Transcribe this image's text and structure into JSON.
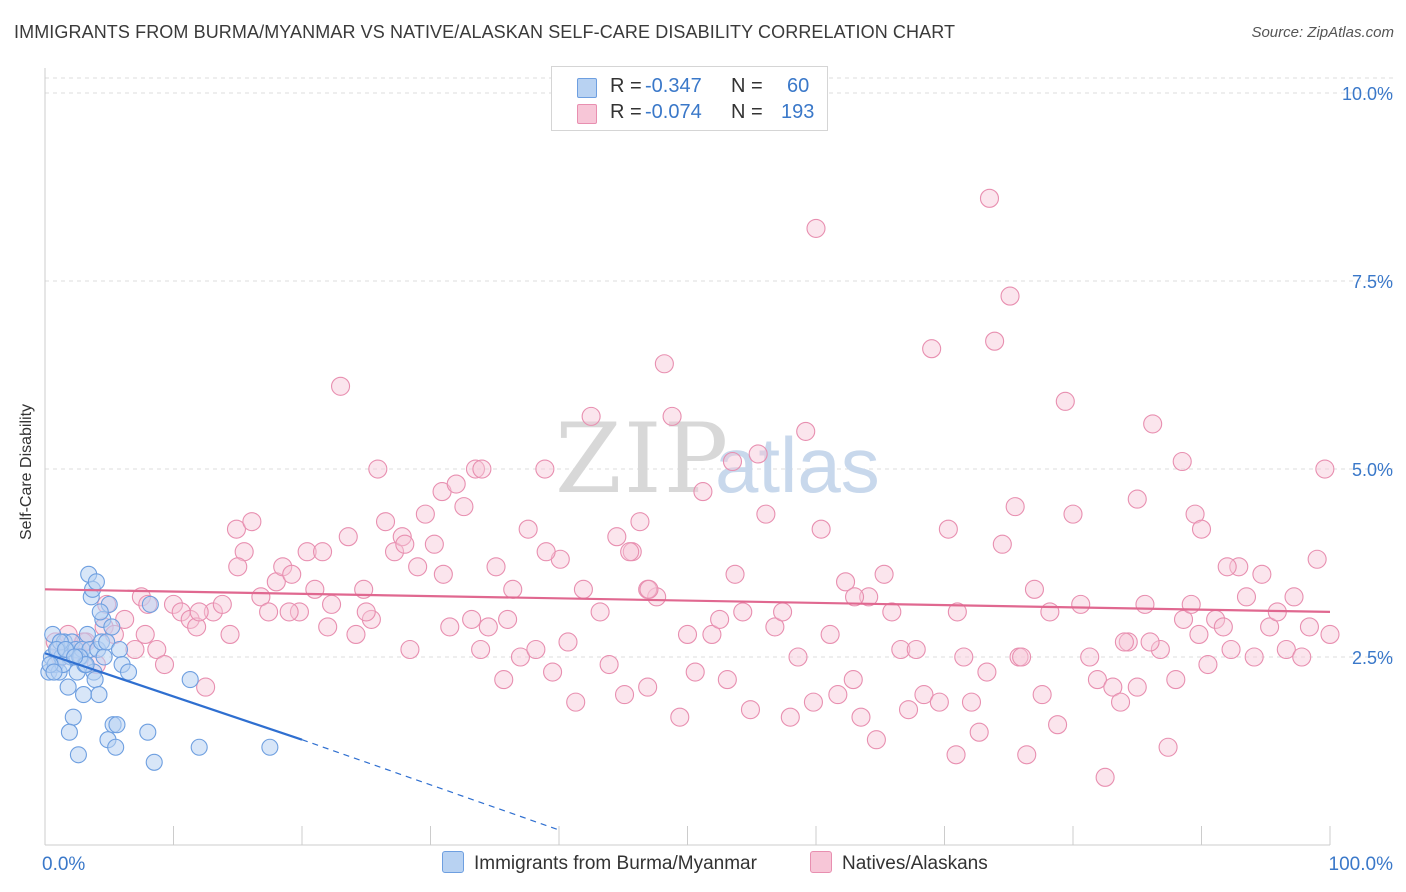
{
  "title": "IMMIGRANTS FROM BURMA/MYANMAR VS NATIVE/ALASKAN SELF-CARE DISABILITY CORRELATION CHART",
  "source": "Source: ZipAtlas.com",
  "watermark": {
    "zip": "ZIP",
    "atlas": "atlas"
  },
  "legend": {
    "r_label": "R =",
    "n_label": "N =",
    "series1": {
      "r": "-0.347",
      "n": "60"
    },
    "series2": {
      "r": "-0.074",
      "n": "193"
    }
  },
  "colors": {
    "blue_fill": "#b8d2f2",
    "blue_stroke": "#6e9fe0",
    "blue_line": "#2f6fd0",
    "pink_fill": "#f7c6d7",
    "pink_stroke": "#e88fb0",
    "pink_line": "#e06890",
    "accent_text": "#3a78c9"
  },
  "chart_data": {
    "type": "scatter",
    "title": "IMMIGRANTS FROM BURMA/MYANMAR VS NATIVE/ALASKAN SELF-CARE DISABILITY CORRELATION CHART",
    "xlabel": "",
    "ylabel": "Self-Care Disability",
    "xlim": [
      0,
      100
    ],
    "ylim": [
      0,
      10.2
    ],
    "x_tick_labels": [
      "0.0%",
      "100.0%"
    ],
    "y_ticks": [
      2.5,
      5.0,
      7.5,
      10.0
    ],
    "y_tick_labels": [
      "2.5%",
      "5.0%",
      "7.5%",
      "10.0%"
    ],
    "grid": true,
    "legend_position": "top-center",
    "series": [
      {
        "name": "Immigrants from Burma/Myanmar",
        "color": "blue",
        "trend": {
          "x0": 0,
          "y0": 2.55,
          "x1": 20,
          "y1": 1.4,
          "dash_to_x": 40,
          "dash_to_y": 0.2
        },
        "points": [
          [
            0.3,
            2.3
          ],
          [
            0.5,
            2.5
          ],
          [
            0.6,
            2.8
          ],
          [
            0.8,
            2.4
          ],
          [
            1.0,
            2.6
          ],
          [
            1.1,
            2.3
          ],
          [
            1.3,
            2.5
          ],
          [
            1.5,
            2.7
          ],
          [
            1.7,
            2.6
          ],
          [
            1.8,
            2.1
          ],
          [
            2.0,
            2.5
          ],
          [
            2.1,
            2.7
          ],
          [
            2.2,
            1.7
          ],
          [
            2.4,
            2.6
          ],
          [
            2.5,
            2.3
          ],
          [
            2.6,
            1.2
          ],
          [
            2.8,
            2.5
          ],
          [
            2.9,
            2.6
          ],
          [
            3.0,
            2.0
          ],
          [
            3.1,
            2.4
          ],
          [
            3.3,
            2.8
          ],
          [
            3.4,
            3.6
          ],
          [
            3.5,
            2.6
          ],
          [
            3.6,
            3.3
          ],
          [
            3.7,
            3.4
          ],
          [
            3.8,
            2.3
          ],
          [
            3.9,
            2.2
          ],
          [
            4.0,
            3.5
          ],
          [
            4.1,
            2.6
          ],
          [
            4.2,
            2.0
          ],
          [
            4.4,
            2.7
          ],
          [
            4.5,
            3.0
          ],
          [
            4.6,
            2.5
          ],
          [
            4.8,
            2.7
          ],
          [
            4.9,
            1.4
          ],
          [
            5.0,
            3.2
          ],
          [
            5.2,
            2.9
          ],
          [
            5.3,
            1.6
          ],
          [
            5.5,
            1.3
          ],
          [
            5.6,
            1.6
          ],
          [
            5.8,
            2.6
          ],
          [
            6.0,
            2.4
          ],
          [
            1.2,
            2.7
          ],
          [
            1.4,
            2.4
          ],
          [
            1.9,
            1.5
          ],
          [
            2.7,
            2.5
          ],
          [
            3.2,
            2.4
          ],
          [
            0.4,
            2.4
          ],
          [
            0.9,
            2.6
          ],
          [
            1.6,
            2.6
          ],
          [
            8.0,
            1.5
          ],
          [
            8.5,
            1.1
          ],
          [
            11.3,
            2.2
          ],
          [
            12.0,
            1.3
          ],
          [
            17.5,
            1.3
          ],
          [
            8.2,
            3.2
          ],
          [
            2.3,
            2.5
          ],
          [
            0.7,
            2.3
          ],
          [
            4.3,
            3.1
          ],
          [
            6.5,
            2.3
          ]
        ]
      },
      {
        "name": "Natives/Alaskans",
        "color": "pink",
        "trend": {
          "x0": 0,
          "y0": 3.4,
          "x1": 100,
          "y1": 3.1
        },
        "points": [
          [
            0.8,
            2.7
          ],
          [
            1.2,
            2.5
          ],
          [
            1.8,
            2.8
          ],
          [
            2.5,
            2.6
          ],
          [
            3.2,
            2.7
          ],
          [
            4.0,
            2.4
          ],
          [
            4.6,
            2.9
          ],
          [
            5.4,
            2.8
          ],
          [
            6.2,
            3.0
          ],
          [
            7.0,
            2.6
          ],
          [
            7.5,
            3.3
          ],
          [
            8.0,
            3.2
          ],
          [
            8.7,
            2.6
          ],
          [
            9.3,
            2.4
          ],
          [
            10.0,
            3.2
          ],
          [
            10.6,
            3.1
          ],
          [
            11.3,
            3.0
          ],
          [
            11.8,
            2.9
          ],
          [
            12.5,
            2.1
          ],
          [
            13.1,
            3.1
          ],
          [
            13.8,
            3.2
          ],
          [
            14.4,
            2.8
          ],
          [
            14.9,
            4.2
          ],
          [
            15.5,
            3.9
          ],
          [
            16.1,
            4.3
          ],
          [
            16.8,
            3.3
          ],
          [
            17.4,
            3.1
          ],
          [
            18.0,
            3.5
          ],
          [
            18.5,
            3.7
          ],
          [
            19.2,
            3.6
          ],
          [
            19.8,
            3.1
          ],
          [
            20.4,
            3.9
          ],
          [
            21.0,
            3.4
          ],
          [
            21.6,
            3.9
          ],
          [
            22.3,
            3.2
          ],
          [
            23.0,
            6.1
          ],
          [
            23.6,
            4.1
          ],
          [
            24.2,
            2.8
          ],
          [
            24.8,
            3.4
          ],
          [
            25.4,
            3.0
          ],
          [
            25.9,
            5.0
          ],
          [
            26.5,
            4.3
          ],
          [
            27.2,
            3.9
          ],
          [
            27.8,
            4.1
          ],
          [
            28.4,
            2.6
          ],
          [
            29.0,
            3.7
          ],
          [
            29.6,
            4.4
          ],
          [
            30.3,
            4.0
          ],
          [
            30.9,
            4.7
          ],
          [
            31.5,
            2.9
          ],
          [
            32.0,
            4.8
          ],
          [
            32.6,
            4.5
          ],
          [
            33.2,
            3.0
          ],
          [
            33.9,
            2.6
          ],
          [
            34.5,
            2.9
          ],
          [
            35.1,
            3.7
          ],
          [
            35.7,
            2.2
          ],
          [
            36.4,
            3.4
          ],
          [
            37.0,
            2.5
          ],
          [
            37.6,
            4.2
          ],
          [
            38.2,
            2.6
          ],
          [
            38.9,
            5.0
          ],
          [
            39.5,
            2.3
          ],
          [
            40.1,
            3.8
          ],
          [
            40.7,
            2.7
          ],
          [
            41.3,
            1.9
          ],
          [
            41.9,
            3.4
          ],
          [
            42.5,
            5.7
          ],
          [
            43.2,
            3.1
          ],
          [
            43.9,
            2.4
          ],
          [
            44.5,
            4.1
          ],
          [
            45.1,
            2.0
          ],
          [
            45.7,
            3.9
          ],
          [
            46.3,
            4.3
          ],
          [
            46.9,
            2.1
          ],
          [
            47.6,
            3.3
          ],
          [
            48.2,
            6.4
          ],
          [
            48.8,
            5.7
          ],
          [
            49.4,
            1.7
          ],
          [
            50.0,
            2.8
          ],
          [
            50.6,
            2.3
          ],
          [
            51.2,
            4.7
          ],
          [
            51.9,
            2.8
          ],
          [
            52.5,
            3.0
          ],
          [
            53.1,
            2.2
          ],
          [
            53.7,
            3.6
          ],
          [
            54.3,
            3.1
          ],
          [
            54.9,
            1.8
          ],
          [
            55.5,
            5.2
          ],
          [
            56.1,
            4.4
          ],
          [
            56.8,
            2.9
          ],
          [
            57.4,
            3.1
          ],
          [
            58.0,
            1.7
          ],
          [
            58.6,
            2.5
          ],
          [
            59.2,
            5.5
          ],
          [
            59.8,
            1.9
          ],
          [
            60.4,
            4.2
          ],
          [
            61.1,
            2.8
          ],
          [
            61.7,
            2.0
          ],
          [
            62.3,
            3.5
          ],
          [
            62.9,
            2.2
          ],
          [
            63.5,
            1.7
          ],
          [
            64.1,
            3.3
          ],
          [
            64.7,
            1.4
          ],
          [
            65.3,
            3.6
          ],
          [
            65.9,
            3.1
          ],
          [
            66.6,
            2.6
          ],
          [
            67.2,
            1.8
          ],
          [
            67.8,
            2.6
          ],
          [
            68.4,
            2.0
          ],
          [
            69.0,
            6.6
          ],
          [
            69.6,
            1.9
          ],
          [
            70.3,
            4.2
          ],
          [
            70.9,
            1.2
          ],
          [
            71.5,
            2.5
          ],
          [
            72.1,
            1.9
          ],
          [
            72.7,
            1.5
          ],
          [
            73.3,
            2.3
          ],
          [
            73.9,
            6.7
          ],
          [
            74.5,
            4.0
          ],
          [
            75.1,
            7.3
          ],
          [
            75.8,
            2.5
          ],
          [
            76.4,
            1.2
          ],
          [
            77.0,
            3.4
          ],
          [
            77.6,
            2.0
          ],
          [
            78.2,
            3.1
          ],
          [
            78.8,
            1.6
          ],
          [
            79.4,
            5.9
          ],
          [
            80.0,
            4.4
          ],
          [
            80.6,
            3.2
          ],
          [
            81.3,
            2.5
          ],
          [
            81.9,
            2.2
          ],
          [
            82.5,
            0.9
          ],
          [
            83.1,
            2.1
          ],
          [
            83.7,
            1.9
          ],
          [
            84.3,
            2.7
          ],
          [
            85.0,
            2.1
          ],
          [
            85.6,
            3.2
          ],
          [
            86.2,
            5.6
          ],
          [
            86.8,
            2.6
          ],
          [
            87.4,
            1.3
          ],
          [
            88.0,
            2.2
          ],
          [
            88.6,
            3.0
          ],
          [
            89.2,
            3.2
          ],
          [
            89.8,
            2.8
          ],
          [
            90.5,
            2.4
          ],
          [
            91.1,
            3.0
          ],
          [
            91.7,
            2.9
          ],
          [
            92.3,
            2.6
          ],
          [
            92.9,
            3.7
          ],
          [
            93.5,
            3.3
          ],
          [
            94.1,
            2.5
          ],
          [
            94.7,
            3.6
          ],
          [
            95.3,
            2.9
          ],
          [
            95.9,
            3.1
          ],
          [
            96.6,
            2.6
          ],
          [
            97.2,
            3.3
          ],
          [
            97.8,
            2.5
          ],
          [
            98.4,
            2.9
          ],
          [
            99.0,
            3.8
          ],
          [
            99.6,
            5.0
          ],
          [
            100.0,
            2.8
          ],
          [
            46.9,
            3.4
          ],
          [
            53.5,
            5.1
          ],
          [
            36.0,
            3.0
          ],
          [
            63.0,
            3.3
          ],
          [
            45.5,
            3.9
          ],
          [
            28.0,
            4.0
          ],
          [
            33.5,
            5.0
          ],
          [
            39.0,
            3.9
          ],
          [
            47.0,
            3.4
          ],
          [
            15.0,
            3.7
          ],
          [
            12.0,
            3.1
          ],
          [
            19.0,
            3.1
          ],
          [
            22.0,
            2.9
          ],
          [
            25.0,
            3.1
          ],
          [
            31.0,
            3.6
          ],
          [
            34.0,
            5.0
          ],
          [
            60.0,
            8.2
          ],
          [
            71.0,
            3.1
          ],
          [
            73.5,
            8.6
          ],
          [
            75.5,
            4.5
          ],
          [
            88.5,
            5.1
          ],
          [
            89.5,
            4.4
          ],
          [
            76.0,
            2.5
          ],
          [
            84.0,
            2.7
          ],
          [
            90.0,
            4.2
          ],
          [
            92.0,
            3.7
          ],
          [
            86.0,
            2.7
          ],
          [
            85.0,
            4.6
          ],
          [
            7.8,
            2.8
          ],
          [
            3.0,
            2.7
          ],
          [
            4.8,
            3.2
          ]
        ]
      }
    ]
  }
}
